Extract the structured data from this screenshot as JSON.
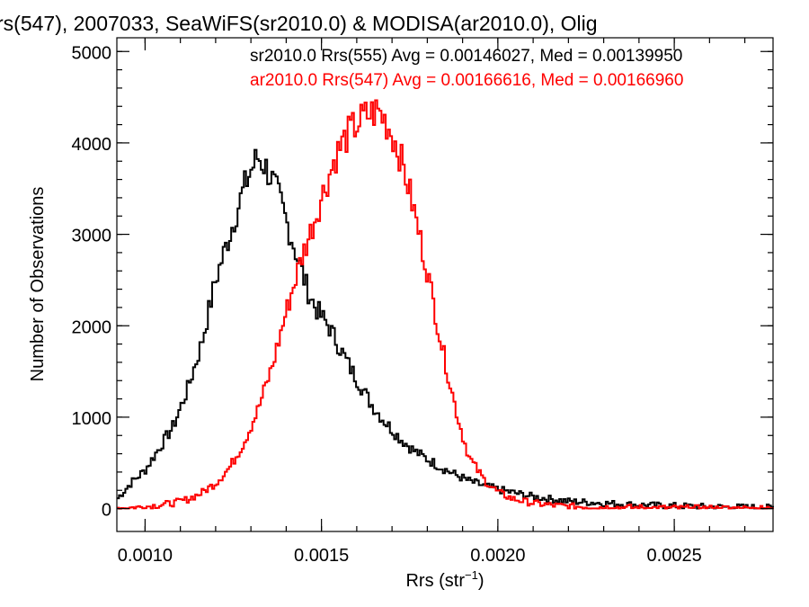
{
  "chart_data": {
    "type": "line",
    "title": "rs(547), 2007033, SeaWiFS(sr2010.0) & MODISA(ar2010.0), Olig",
    "xlabel": "Rrs (str",
    "xlabel_sup": "−1",
    "xlabel_close": ")",
    "ylabel": "Number of Observations",
    "xlim": [
      0.00092,
      0.00278
    ],
    "ylim": [
      -250,
      5150
    ],
    "xticks": [
      {
        "value": 0.001,
        "label": "0.0010"
      },
      {
        "value": 0.0015,
        "label": "0.0015"
      },
      {
        "value": 0.002,
        "label": "0.0020"
      },
      {
        "value": 0.0025,
        "label": "0.0025"
      }
    ],
    "yticks": [
      {
        "value": 0,
        "label": "0"
      },
      {
        "value": 1000,
        "label": "1000"
      },
      {
        "value": 2000,
        "label": "2000"
      },
      {
        "value": 3000,
        "label": "3000"
      },
      {
        "value": 4000,
        "label": "4000"
      },
      {
        "value": 5000,
        "label": "5000"
      }
    ],
    "grid": false,
    "legend_position": "top-right",
    "series": [
      {
        "name": "sr2010.0 Rrs(555) Avg = 0.00146027, Med = 0.00139950",
        "color": "#000000",
        "x": [
          0.00092,
          0.00096,
          0.001,
          0.00104,
          0.00108,
          0.00112,
          0.00116,
          0.0012,
          0.00124,
          0.00128,
          0.0013,
          0.00132,
          0.00134,
          0.00136,
          0.00138,
          0.0014,
          0.00142,
          0.00144,
          0.00146,
          0.00148,
          0.0015,
          0.00152,
          0.00154,
          0.00156,
          0.00158,
          0.0016,
          0.00164,
          0.00168,
          0.00172,
          0.00176,
          0.0018,
          0.00184,
          0.00188,
          0.00192,
          0.00196,
          0.002,
          0.00205,
          0.0021,
          0.00215,
          0.0022,
          0.0023,
          0.0024,
          0.0025,
          0.0026,
          0.0027,
          0.00278
        ],
        "values": [
          100,
          280,
          420,
          660,
          900,
          1300,
          1800,
          2500,
          3000,
          3500,
          3700,
          3850,
          3750,
          3600,
          3400,
          3150,
          2900,
          2650,
          2400,
          2220,
          2100,
          2000,
          1850,
          1700,
          1550,
          1420,
          1150,
          950,
          780,
          640,
          540,
          450,
          370,
          300,
          250,
          210,
          170,
          130,
          105,
          80,
          60,
          40,
          30,
          20,
          15,
          10
        ]
      },
      {
        "name": "ar2010.0 Rrs(547) Avg = 0.00166616, Med = 0.00166960",
        "color": "#ff0000",
        "x": [
          0.00092,
          0.001,
          0.00108,
          0.00112,
          0.00116,
          0.0012,
          0.00124,
          0.00128,
          0.00132,
          0.00136,
          0.0014,
          0.00144,
          0.00148,
          0.0015,
          0.00152,
          0.00154,
          0.00156,
          0.00158,
          0.0016,
          0.00162,
          0.00164,
          0.00166,
          0.00168,
          0.0017,
          0.00172,
          0.00174,
          0.00176,
          0.00178,
          0.0018,
          0.00182,
          0.00184,
          0.00186,
          0.00188,
          0.0019,
          0.00192,
          0.00196,
          0.002,
          0.00204,
          0.00208,
          0.00212,
          0.00216,
          0.0022,
          0.0023,
          0.0024,
          0.0025,
          0.0026,
          0.0027,
          0.00278
        ],
        "values": [
          0,
          20,
          60,
          100,
          170,
          280,
          450,
          720,
          1080,
          1550,
          2150,
          2700,
          3150,
          3400,
          3620,
          3850,
          4000,
          4120,
          4200,
          4280,
          4320,
          4350,
          4250,
          4100,
          3900,
          3620,
          3300,
          2950,
          2600,
          2200,
          1800,
          1450,
          1100,
          800,
          550,
          320,
          180,
          110,
          75,
          50,
          35,
          25,
          15,
          10,
          5,
          3,
          2,
          1
        ]
      }
    ]
  }
}
